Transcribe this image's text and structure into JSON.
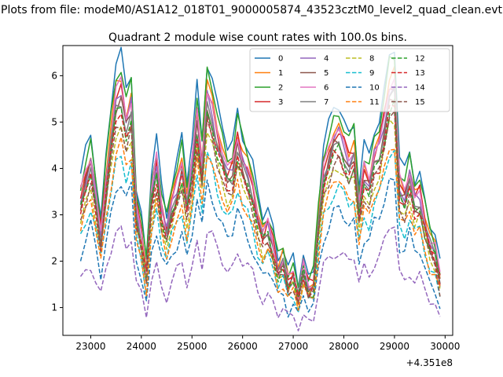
{
  "figure": {
    "suptitle": "Plots from file: modeM0/AS1A12_018T01_9000005874_43523cztM0_level2_quad_clean.evt",
    "offset_label": "+4.351e8"
  },
  "chart_data": {
    "type": "line",
    "title": "Quadrant 2 module wise count rates with 100.0s bins.",
    "xlabel": "",
    "ylabel": "",
    "xlim": [
      22450,
      30150
    ],
    "ylim": [
      0.4,
      6.65
    ],
    "xticks": [
      23000,
      24000,
      25000,
      26000,
      27000,
      28000,
      29000,
      30000
    ],
    "yticks": [
      1,
      2,
      3,
      4,
      5,
      6
    ],
    "x_start": 22800,
    "x_step": 100,
    "legend_position": "upper right",
    "base_profile": [
      3.5,
      4.0,
      4.4,
      3.6,
      2.7,
      3.9,
      4.9,
      5.8,
      6.0,
      5.3,
      5.7,
      3.3,
      2.7,
      1.8,
      3.6,
      4.3,
      3.3,
      2.8,
      3.4,
      3.8,
      4.3,
      3.4,
      4.2,
      5.4,
      4.3,
      5.9,
      5.5,
      4.9,
      4.5,
      4.1,
      4.2,
      4.9,
      4.4,
      4.1,
      3.7,
      3.1,
      2.7,
      2.9,
      2.5,
      1.9,
      2.1,
      1.6,
      1.8,
      1.3,
      2.0,
      1.5,
      1.6,
      3.0,
      4.1,
      4.5,
      4.9,
      5.0,
      4.7,
      4.4,
      4.6,
      3.3,
      4.1,
      3.9,
      4.5,
      4.7,
      5.3,
      6.0,
      6.1,
      3.8,
      3.6,
      4.1,
      3.5,
      3.6,
      3.0,
      2.5,
      2.3,
      1.7
    ],
    "series": [
      {
        "name": "0",
        "color": "#1f77b4",
        "dash": "solid",
        "scale": 1.06,
        "offset": 0.1
      },
      {
        "name": "1",
        "color": "#ff7f0e",
        "dash": "solid",
        "scale": 0.98,
        "offset": 0.05
      },
      {
        "name": "2",
        "color": "#2ca02c",
        "dash": "solid",
        "scale": 1.02,
        "offset": 0.1
      },
      {
        "name": "3",
        "color": "#d62728",
        "dash": "solid",
        "scale": 0.96,
        "offset": 0.0
      },
      {
        "name": "4",
        "color": "#9467bd",
        "dash": "solid",
        "scale": 0.94,
        "offset": 0.0
      },
      {
        "name": "5",
        "color": "#8c564b",
        "dash": "solid",
        "scale": 0.92,
        "offset": -0.05
      },
      {
        "name": "6",
        "color": "#e377c2",
        "dash": "solid",
        "scale": 0.97,
        "offset": 0.0
      },
      {
        "name": "7",
        "color": "#7f7f7f",
        "dash": "solid",
        "scale": 0.9,
        "offset": 0.05
      },
      {
        "name": "8",
        "color": "#bcbd22",
        "dash": "dashed",
        "scale": 0.82,
        "offset": 0.0
      },
      {
        "name": "9",
        "color": "#17becf",
        "dash": "dashed",
        "scale": 0.7,
        "offset": 0.1
      },
      {
        "name": "10",
        "color": "#1f77b4",
        "dash": "dashed",
        "scale": 0.62,
        "offset": 0.0
      },
      {
        "name": "11",
        "color": "#ff7f0e",
        "dash": "dashed",
        "scale": 0.75,
        "offset": 0.0
      },
      {
        "name": "12",
        "color": "#2ca02c",
        "dash": "dashed",
        "scale": 0.88,
        "offset": 0.0
      },
      {
        "name": "13",
        "color": "#d62728",
        "dash": "dashed",
        "scale": 0.86,
        "offset": 0.05
      },
      {
        "name": "14",
        "color": "#9467bd",
        "dash": "dashed",
        "scale": 0.45,
        "offset": 0.0
      },
      {
        "name": "15",
        "color": "#8c564b",
        "dash": "dashed",
        "scale": 0.84,
        "offset": 0.0
      }
    ]
  }
}
